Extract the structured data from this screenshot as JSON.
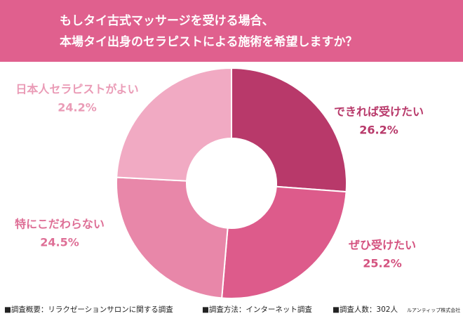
{
  "chart_data": {
    "type": "donut",
    "title": [
      "もしタイ古式マッサージを受ける場合、",
      "本場タイ出身のセラピストによる施術を希望しますか？"
    ],
    "categories": [
      "できれば受けたい",
      "ぜひ受けたい",
      "特にこだわらない",
      "日本人セラピストがよい"
    ],
    "values": [
      26.2,
      25.2,
      24.5,
      24.2
    ],
    "value_labels": [
      "26.2%",
      "25.2%",
      "24.5%",
      "24.2%"
    ],
    "colors": [
      "#b8396a",
      "#dd5b8b",
      "#e887a9",
      "#f1aac3"
    ],
    "label_colors": [
      "#b8396a",
      "#d4527f",
      "#de6f96",
      "#ea9bb6"
    ],
    "footer": [
      "■調査概要：リラクゼーションサロンに関する調査",
      "■調査方法：インターネット調査",
      "■調査人数：302人",
      "ルアンティップ株式会社"
    ]
  }
}
